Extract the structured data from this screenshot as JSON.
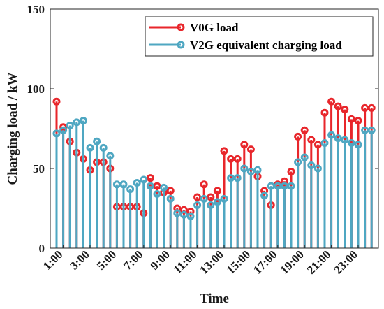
{
  "chart_data": {
    "type": "stem",
    "xlabel": "Time",
    "ylabel": "Charging load / kW",
    "ylim": [
      0,
      150
    ],
    "yticks": [
      "0",
      "50",
      "100",
      "150"
    ],
    "xticks": [
      "1:00",
      "3:00",
      "5:00",
      "7:00",
      "9:00",
      "11:00",
      "13:00",
      "15:00",
      "17:00",
      "19:00",
      "21:00",
      "23:00"
    ],
    "grid": false,
    "legend_position": "top-right",
    "series": [
      {
        "name": "V0G load",
        "color": "#e8262b",
        "values": [
          92,
          76,
          67,
          60,
          56,
          49,
          54,
          54,
          50,
          26,
          26,
          26,
          26,
          22,
          44,
          39,
          35,
          36,
          25,
          24,
          23,
          32,
          40,
          32,
          36,
          61,
          56,
          56,
          65,
          62,
          45,
          36,
          27,
          40,
          42,
          48,
          70,
          74,
          68,
          65,
          85,
          92,
          89,
          87,
          81,
          80,
          88,
          88
        ]
      },
      {
        "name": "V2G equivalent charging load",
        "color": "#4fa7c2",
        "values": [
          72,
          74,
          77,
          79,
          80,
          63,
          67,
          63,
          58,
          40,
          40,
          37,
          41,
          43,
          39,
          34,
          38,
          31,
          22,
          21,
          20,
          27,
          31,
          27,
          29,
          31,
          44,
          44,
          50,
          48,
          49,
          33,
          39,
          39,
          39,
          39,
          54,
          57,
          52,
          50,
          66,
          71,
          69,
          68,
          66,
          65,
          74,
          74
        ]
      }
    ]
  }
}
